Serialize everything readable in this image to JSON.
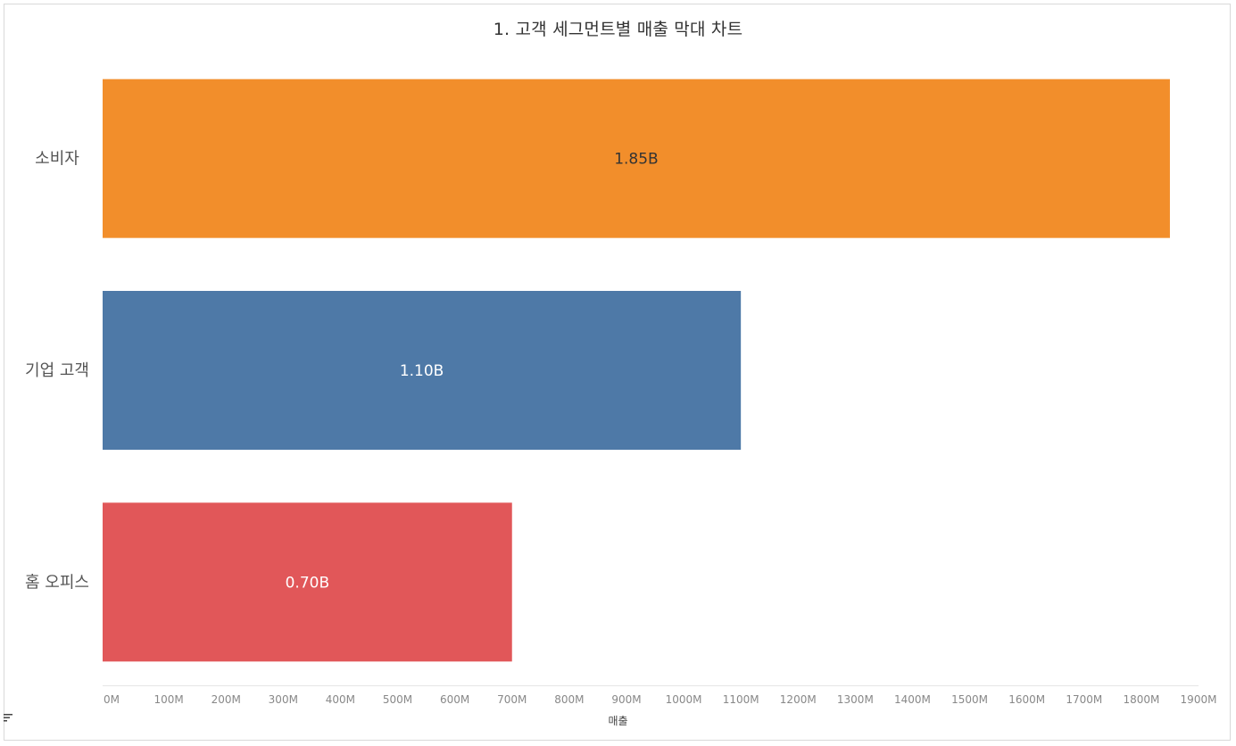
{
  "chart_data": {
    "type": "bar",
    "orientation": "horizontal",
    "title": "1. 고객 세그먼트별 매출 막대 차트",
    "xlabel": "매출",
    "ylabel": "",
    "categories": [
      "소비자",
      "기업 고객",
      "홈 오피스"
    ],
    "values": [
      1850,
      1100,
      700
    ],
    "value_units": "M",
    "data_labels": [
      "1.85B",
      "1.10B",
      "0.70B"
    ],
    "colors": [
      "#f28e2b",
      "#4e79a7",
      "#e15759"
    ],
    "label_colors": [
      "#333333",
      "#ffffff",
      "#ffffff"
    ],
    "xlim": [
      0,
      1900
    ],
    "x_ticks": [
      0,
      100,
      200,
      300,
      400,
      500,
      600,
      700,
      800,
      900,
      1000,
      1100,
      1200,
      1300,
      1400,
      1500,
      1600,
      1700,
      1800,
      1900
    ],
    "x_tick_labels": [
      "0M",
      "100M",
      "200M",
      "300M",
      "400M",
      "500M",
      "600M",
      "700M",
      "800M",
      "900M",
      "1000M",
      "1100M",
      "1200M",
      "1300M",
      "1400M",
      "1500M",
      "1600M",
      "1700M",
      "1800M",
      "1900M"
    ],
    "grid": false,
    "legend": "none",
    "axis_title_icon": "sort-descending-icon"
  }
}
